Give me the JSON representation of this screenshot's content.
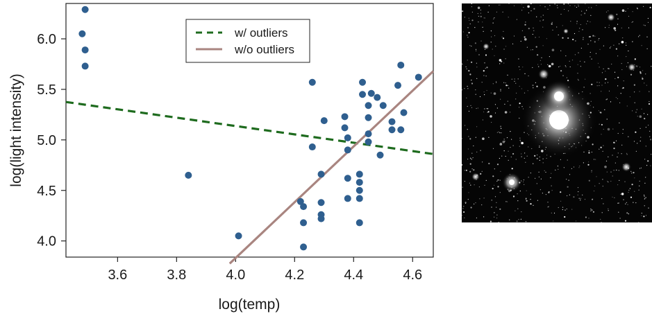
{
  "chart_data": {
    "type": "scatter",
    "title": "",
    "xlabel": "log(temp)",
    "ylabel": "log(light intensity)",
    "xlim": [
      3.425,
      4.67
    ],
    "ylim": [
      3.84,
      6.35
    ],
    "x_ticks": [
      3.6,
      3.8,
      4.0,
      4.2,
      4.4,
      4.6
    ],
    "y_ticks": [
      4.0,
      4.5,
      5.0,
      5.5,
      6.0
    ],
    "x_tick_labels": [
      "3.6",
      "3.8",
      "4.0",
      "4.2",
      "4.4",
      "4.6"
    ],
    "y_tick_labels": [
      "4.0",
      "4.5",
      "5.0",
      "5.5",
      "6.0"
    ],
    "grid": false,
    "legend_position": "top-center",
    "point_color": "#2f5f8f",
    "series": [
      {
        "type": "scatter",
        "points": [
          [
            3.49,
            6.29
          ],
          [
            3.48,
            6.05
          ],
          [
            3.49,
            5.89
          ],
          [
            3.49,
            5.73
          ],
          [
            3.84,
            4.65
          ],
          [
            4.01,
            4.05
          ],
          [
            4.22,
            4.39
          ],
          [
            4.23,
            4.34
          ],
          [
            4.23,
            4.18
          ],
          [
            4.23,
            3.94
          ],
          [
            4.26,
            5.57
          ],
          [
            4.26,
            4.93
          ],
          [
            4.29,
            4.66
          ],
          [
            4.29,
            4.38
          ],
          [
            4.29,
            4.26
          ],
          [
            4.29,
            4.22
          ],
          [
            4.3,
            5.19
          ],
          [
            4.37,
            5.23
          ],
          [
            4.37,
            5.12
          ],
          [
            4.38,
            5.02
          ],
          [
            4.38,
            4.9
          ],
          [
            4.38,
            4.62
          ],
          [
            4.38,
            4.42
          ],
          [
            4.42,
            4.66
          ],
          [
            4.42,
            4.58
          ],
          [
            4.42,
            4.5
          ],
          [
            4.42,
            4.42
          ],
          [
            4.42,
            4.18
          ],
          [
            4.43,
            5.57
          ],
          [
            4.43,
            5.45
          ],
          [
            4.45,
            5.34
          ],
          [
            4.45,
            5.22
          ],
          [
            4.45,
            5.06
          ],
          [
            4.45,
            4.98
          ],
          [
            4.46,
            5.46
          ],
          [
            4.48,
            5.42
          ],
          [
            4.49,
            4.85
          ],
          [
            4.5,
            5.34
          ],
          [
            4.53,
            5.18
          ],
          [
            4.53,
            5.1
          ],
          [
            4.55,
            5.54
          ],
          [
            4.56,
            5.74
          ],
          [
            4.56,
            5.1
          ],
          [
            4.57,
            5.27
          ],
          [
            4.62,
            5.62
          ]
        ]
      },
      {
        "type": "line",
        "name": "w/ outliers",
        "color": "#1e6b1e",
        "dash": "dashed",
        "x": [
          3.425,
          4.67
        ],
        "y": [
          5.375,
          4.86
        ]
      },
      {
        "type": "line",
        "name": "w/o outliers",
        "color": "#a98580",
        "dash": "solid",
        "x": [
          3.98,
          4.67
        ],
        "y": [
          3.776,
          5.68
        ]
      }
    ]
  },
  "side_image": {
    "description_icon": "star-cluster-photo-icon",
    "colors": {
      "background": "#050505",
      "star": "#ffffff",
      "glow": "#cfcfcf"
    }
  }
}
